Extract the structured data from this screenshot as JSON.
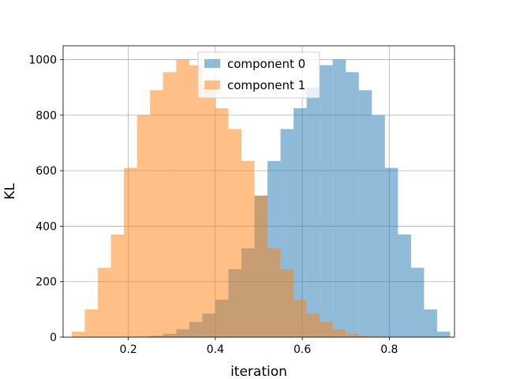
{
  "chart_data": {
    "type": "bar",
    "subtype": "overlapping-histogram",
    "xlabel": "iteration",
    "ylabel": "KL",
    "xlim": [
      0.05,
      0.95
    ],
    "ylim": [
      0,
      1050
    ],
    "xticks": [
      0.2,
      0.4,
      0.6,
      0.8
    ],
    "xtick_labels": [
      "0.2",
      "0.4",
      "0.6",
      "0.8"
    ],
    "yticks": [
      0,
      200,
      400,
      600,
      800,
      1000
    ],
    "ytick_labels": [
      "0",
      "200",
      "400",
      "600",
      "800",
      "1000"
    ],
    "grid": true,
    "legend_position": "top-center",
    "bin_width": 0.03,
    "series": [
      {
        "name": "component 0",
        "color": "#1f77b4",
        "opacity": 0.5,
        "bin_starts": [
          0.07,
          0.1,
          0.13,
          0.16,
          0.19,
          0.22,
          0.25,
          0.28,
          0.31,
          0.34,
          0.37,
          0.4,
          0.43,
          0.46,
          0.49,
          0.52,
          0.55,
          0.58,
          0.61,
          0.64,
          0.67,
          0.7,
          0.73,
          0.76,
          0.79,
          0.82,
          0.85,
          0.88,
          0.91
        ],
        "values": [
          0,
          0,
          0,
          0,
          0,
          2,
          5,
          12,
          28,
          55,
          85,
          135,
          245,
          320,
          510,
          635,
          750,
          825,
          900,
          980,
          1000,
          955,
          890,
          800,
          610,
          370,
          250,
          100,
          20
        ]
      },
      {
        "name": "component 1",
        "color": "#ff7f0e",
        "opacity": 0.5,
        "bin_starts": [
          0.07,
          0.1,
          0.13,
          0.16,
          0.19,
          0.22,
          0.25,
          0.28,
          0.31,
          0.34,
          0.37,
          0.4,
          0.43,
          0.46,
          0.49,
          0.52,
          0.55,
          0.58,
          0.61,
          0.64,
          0.67,
          0.7,
          0.73,
          0.76,
          0.79,
          0.82,
          0.85,
          0.88,
          0.91
        ],
        "values": [
          20,
          100,
          250,
          370,
          610,
          800,
          890,
          955,
          1000,
          980,
          900,
          825,
          750,
          635,
          510,
          320,
          245,
          135,
          85,
          55,
          28,
          12,
          5,
          2,
          0,
          0,
          0,
          0,
          0
        ]
      }
    ]
  }
}
